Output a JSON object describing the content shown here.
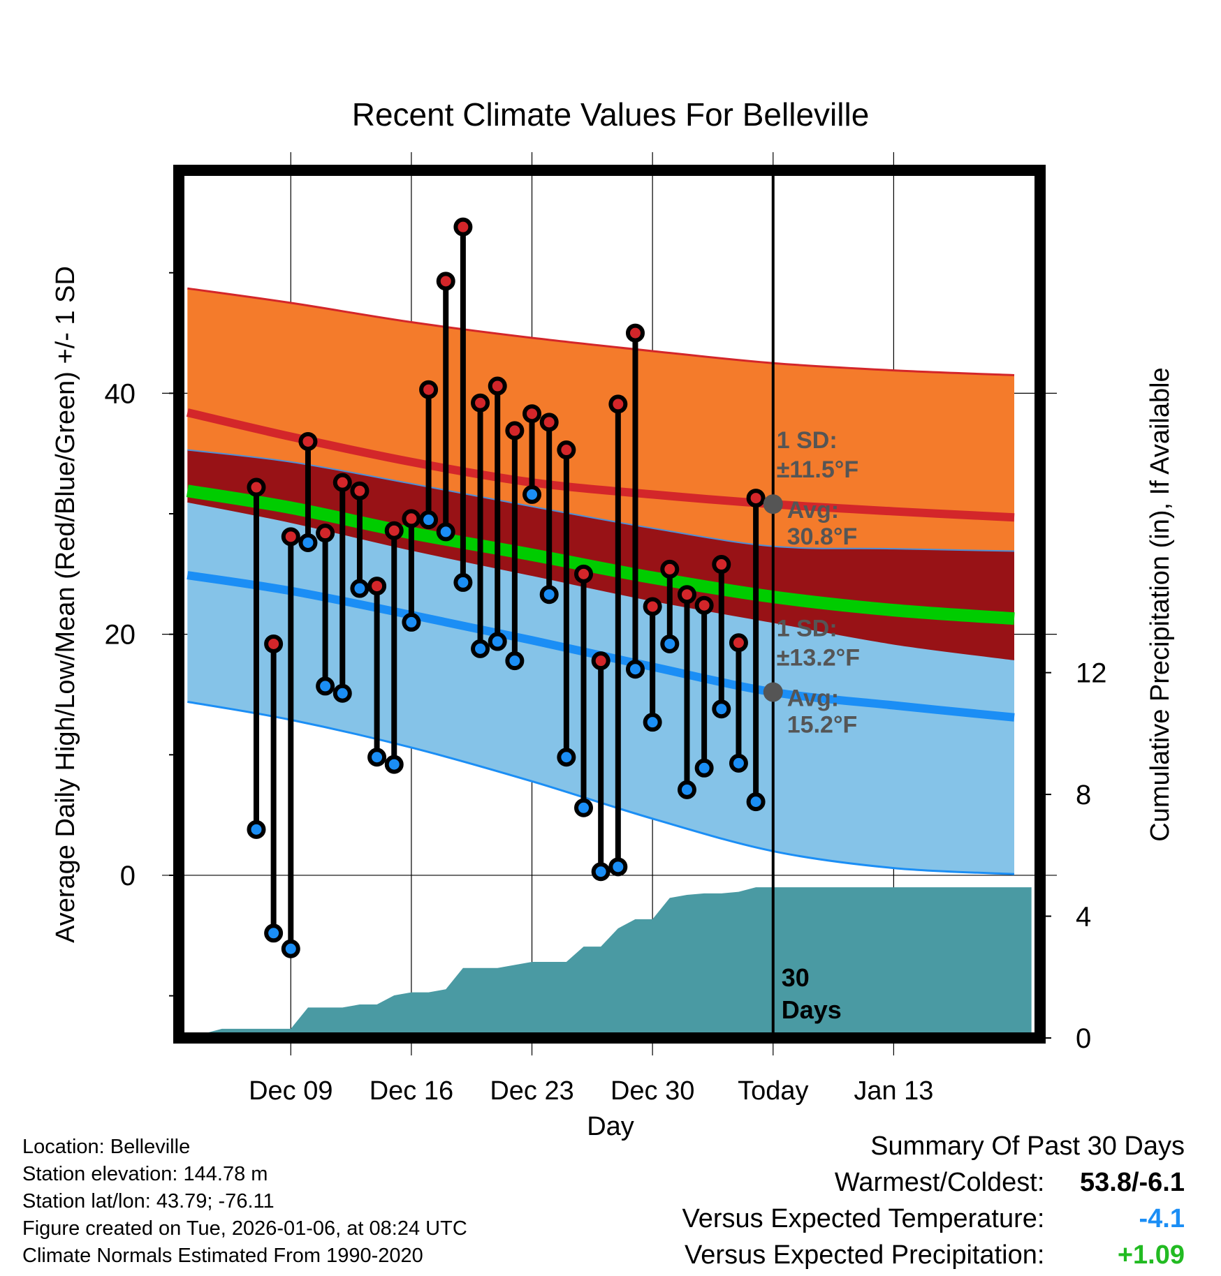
{
  "chart_data": {
    "type": "line",
    "title": "Recent Climate Values For Belleville",
    "xlabel": "Day",
    "ylabel_left": "Average Daily High/Low/Mean (Red/Blue/Green) +/- 1 SD",
    "ylabel_right": "Cumulative Precipitation (in), If Available",
    "x_range": [
      -34.5,
      15.5
    ],
    "ylim": [
      -13.5,
      58.5
    ],
    "y_ticks": [
      0,
      20,
      40
    ],
    "y_tick_labels": [
      "0",
      "20",
      "40"
    ],
    "y_minor_ticks": [
      -10,
      10,
      30,
      50
    ],
    "precip_ylim": [
      0,
      28.5
    ],
    "precip_ticks": [
      0,
      4,
      8,
      12
    ],
    "precip_tick_labels": [
      "0",
      "4",
      "8",
      "12"
    ],
    "x_ticks": [
      -28,
      -21,
      -14,
      -7,
      0,
      7
    ],
    "x_tick_labels": [
      "Dec 09",
      "Dec 16",
      "Dec 23",
      "Dec 30",
      "Today",
      "Jan 13"
    ],
    "today_marker_label": [
      "30",
      "Days"
    ],
    "normals": {
      "x": [
        -34,
        -28,
        -21,
        -14,
        -7,
        0,
        7,
        14
      ],
      "high_mean": [
        38.4,
        36.4,
        34.3,
        32.6,
        31.6,
        30.8,
        30.2,
        29.7
      ],
      "high_upper": [
        48.7,
        47.5,
        45.9,
        44.6,
        43.5,
        42.5,
        41.9,
        41.5
      ],
      "high_lower": [
        35.3,
        34.3,
        32.5,
        30.6,
        28.8,
        27.3,
        27.1,
        26.9
      ],
      "mean_line": [
        31.9,
        30.5,
        28.4,
        26.6,
        24.7,
        23.1,
        22.0,
        21.3
      ],
      "low_mean": [
        24.9,
        23.6,
        21.6,
        19.5,
        17.3,
        15.2,
        14.1,
        13.1
      ],
      "low_upper": [
        31.0,
        29.3,
        27.0,
        24.9,
        22.8,
        21.0,
        19.2,
        17.9
      ],
      "low_lower": [
        14.4,
        12.9,
        10.6,
        7.8,
        4.7,
        2.0,
        0.6,
        0.1
      ]
    },
    "high_sd_label": [
      "1 SD:",
      "±11.5°F",
      "Avg:",
      "30.8°F"
    ],
    "low_sd_label": [
      "1 SD:",
      "±13.2°F",
      "Avg:",
      "15.2°F"
    ],
    "today_high_avg": 30.8,
    "today_low_avg": 15.2,
    "series": [
      {
        "name": "Daily High",
        "x": [
          -30,
          -29,
          -28,
          -27,
          -26,
          -25,
          -24,
          -23,
          -22,
          -21,
          -20,
          -19,
          -18,
          -17,
          -16,
          -15,
          -14,
          -13,
          -12,
          -11,
          -10,
          -9,
          -8,
          -7,
          -6,
          -5,
          -4,
          -3,
          -2,
          -1
        ],
        "values": [
          32.2,
          19.2,
          28.1,
          36.0,
          28.4,
          32.6,
          31.9,
          24.0,
          28.6,
          29.6,
          40.3,
          49.3,
          53.8,
          39.2,
          40.6,
          36.9,
          38.3,
          37.6,
          35.3,
          25.0,
          17.8,
          39.1,
          45.0,
          22.3,
          25.4,
          23.3,
          22.4,
          25.8,
          19.3,
          31.3
        ]
      },
      {
        "name": "Daily Low",
        "x": [
          -30,
          -29,
          -28,
          -27,
          -26,
          -25,
          -24,
          -23,
          -22,
          -21,
          -20,
          -19,
          -18,
          -17,
          -16,
          -15,
          -14,
          -13,
          -12,
          -11,
          -10,
          -9,
          -8,
          -7,
          -6,
          -5,
          -4,
          -3,
          -2,
          -1
        ],
        "values": [
          3.8,
          -4.8,
          -6.1,
          27.6,
          15.7,
          15.1,
          23.8,
          9.8,
          9.2,
          21.0,
          29.5,
          28.5,
          24.3,
          18.8,
          19.4,
          17.8,
          31.6,
          23.3,
          9.8,
          5.6,
          0.3,
          0.7,
          17.1,
          12.7,
          19.2,
          7.1,
          8.9,
          13.8,
          9.3,
          6.1
        ]
      },
      {
        "name": "Cumulative Precipitation",
        "x": [
          -34,
          -32,
          -31,
          -30,
          -29,
          -28,
          -27,
          -26,
          -25,
          -24,
          -23,
          -22,
          -21,
          -20,
          -19,
          -18,
          -17,
          -16,
          -15,
          -14,
          -13,
          -12,
          -11,
          -10,
          -9,
          -8,
          -7,
          -6,
          -5,
          -4,
          -3,
          -2,
          -1,
          0,
          15
        ],
        "values": [
          0.0,
          0.3,
          0.3,
          0.3,
          0.3,
          0.3,
          1.0,
          1.0,
          1.0,
          1.1,
          1.1,
          1.4,
          1.5,
          1.5,
          1.6,
          2.3,
          2.3,
          2.3,
          2.4,
          2.5,
          2.5,
          2.5,
          3.0,
          3.0,
          3.6,
          3.9,
          3.9,
          4.6,
          4.7,
          4.75,
          4.75,
          4.8,
          4.95,
          4.95,
          4.95
        ]
      }
    ],
    "colors": {
      "high_band": "#f47b2b",
      "high_line": "#d3262a",
      "overlap_band": "#981216",
      "mean_line": "#00cc00",
      "low_band": "#85c3e8",
      "low_line": "#1b8ef5",
      "precip": "#4a9aa3",
      "high_dot": "#d3262a",
      "low_dot": "#1b8ef5",
      "avg_dot": "#555555",
      "sd_text": "#555555"
    }
  },
  "metadata": {
    "location": "Location: Belleville",
    "elevation": "Station elevation: 144.78 m",
    "latlon": "Station lat/lon: 43.79; -76.11",
    "created": "Figure created on Tue, 2026-01-06, at 08:24 UTC",
    "normals": "Climate Normals Estimated From 1990-2020"
  },
  "summary": {
    "title": "Summary Of Past 30 Days",
    "warmest_label": "Warmest/Coldest:",
    "warmest_value": "53.8/-6.1",
    "temp_label": "Versus Expected Temperature:",
    "temp_value": "-4.1",
    "temp_color": "#1b8ef5",
    "precip_label": "Versus Expected Precipitation:",
    "precip_value": "+1.09",
    "precip_color": "#22bb22"
  }
}
